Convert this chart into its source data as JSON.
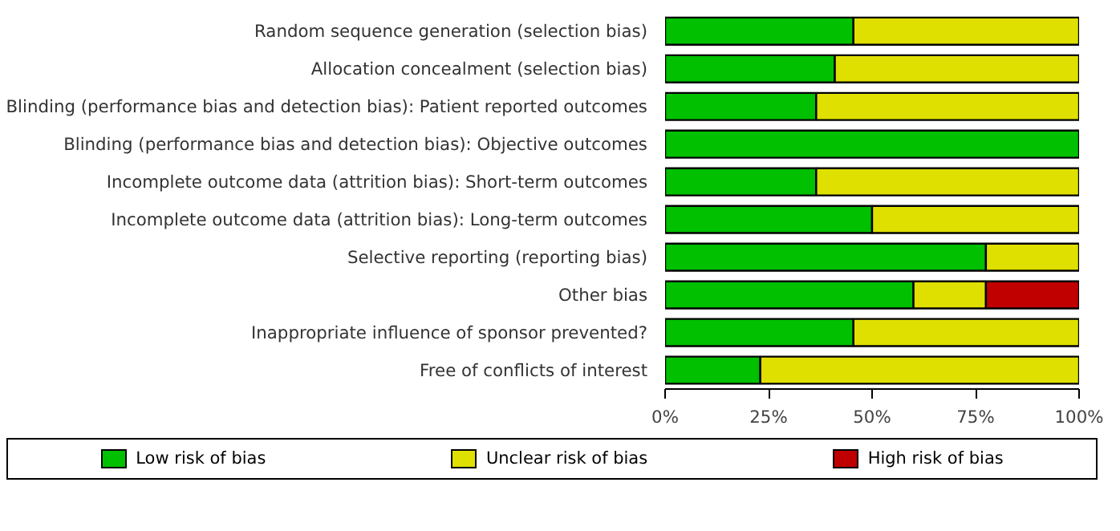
{
  "chart_data": {
    "type": "bar",
    "orientation": "horizontal",
    "stacked": true,
    "categories": [
      "Random sequence generation (selection bias)",
      "Allocation concealment (selection bias)",
      "Blinding (performance bias and detection bias): Patient reported outcomes",
      "Blinding (performance bias and detection bias): Objective outcomes",
      "Incomplete outcome data (attrition bias): Short-term outcomes",
      "Incomplete outcome data (attrition bias): Long-term outcomes",
      "Selective reporting (reporting bias)",
      "Other bias",
      "Inappropriate influence of sponsor prevented?",
      "Free of conflicts of interest"
    ],
    "series": [
      {
        "name": "Low risk of bias",
        "color": "#00c000",
        "values": [
          45.5,
          41,
          36.5,
          100,
          36.5,
          50,
          77.5,
          60,
          45.5,
          23
        ]
      },
      {
        "name": "Unclear risk of bias",
        "color": "#e0e000",
        "values": [
          54.5,
          59,
          63.5,
          0,
          63.5,
          50,
          22.5,
          17.5,
          54.5,
          77
        ]
      },
      {
        "name": "High risk of bias",
        "color": "#c00000",
        "values": [
          0,
          0,
          0,
          0,
          0,
          0,
          0,
          22.5,
          0,
          0
        ]
      }
    ],
    "xlim": [
      0,
      100
    ],
    "xticks": [
      {
        "value": 0,
        "label": "0%"
      },
      {
        "value": 25,
        "label": "25%"
      },
      {
        "value": 50,
        "label": "50%"
      },
      {
        "value": 75,
        "label": "75%"
      },
      {
        "value": 100,
        "label": "100%"
      }
    ],
    "grid": false,
    "legend": "bottom"
  }
}
